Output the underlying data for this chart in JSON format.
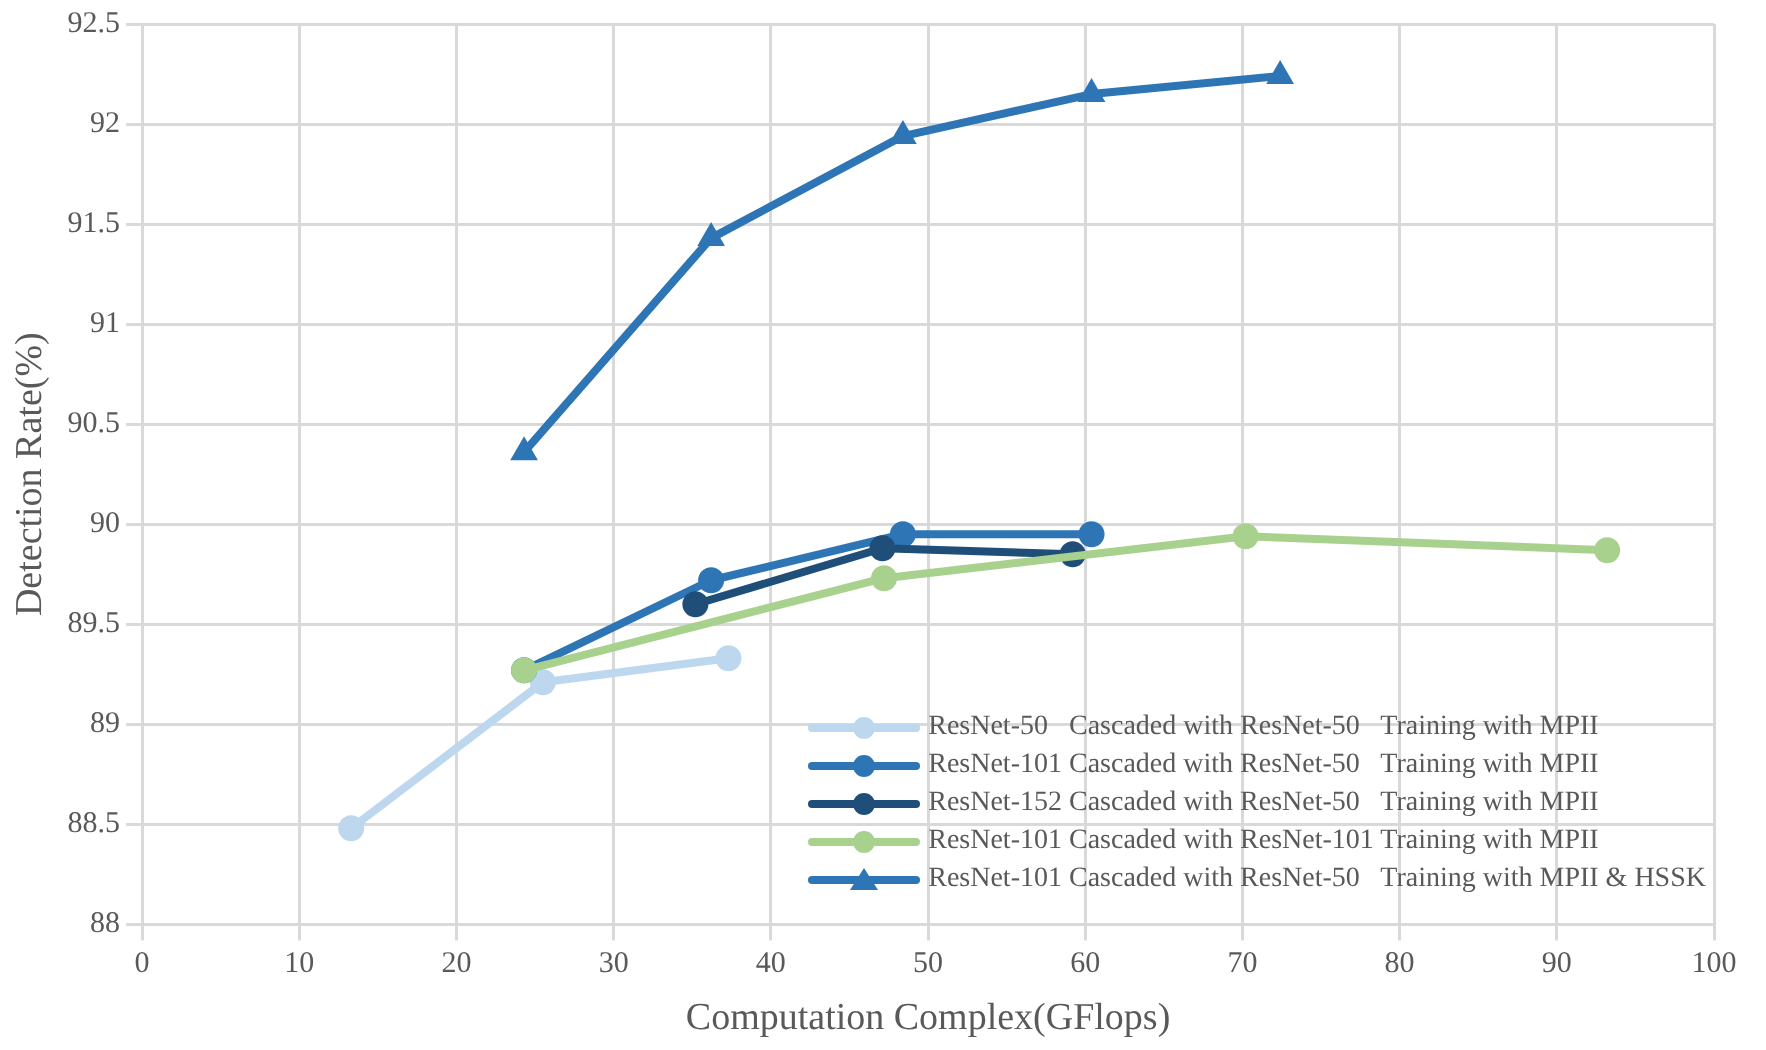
{
  "chart_data": {
    "type": "line",
    "xlabel": "Computation Complex(GFlops)",
    "ylabel": "Detection Rate(%)",
    "xlim": [
      0,
      100
    ],
    "xticks": [
      0,
      10,
      20,
      30,
      40,
      50,
      60,
      70,
      80,
      90,
      100
    ],
    "ylim": [
      88,
      92.5
    ],
    "yticks": [
      88,
      88.5,
      89,
      89.5,
      90,
      90.5,
      91,
      91.5,
      92,
      92.5
    ],
    "grid": true,
    "legend": "bottom right",
    "marker": "circle",
    "line_style": "solid",
    "series": [
      {
        "name": "ResNet-50   Cascaded with ResNet-50   Training with MPII",
        "color": "#bdd7ee",
        "x": [
          13.3,
          25.5,
          37.3
        ],
        "values": [
          88.48,
          89.21,
          89.33
        ]
      },
      {
        "name": "ResNet-101 Cascaded with ResNet-50   Training with MPII",
        "color": "#2e75b6",
        "x": [
          24.3,
          36.2,
          48.4,
          60.4
        ],
        "values": [
          89.27,
          89.72,
          89.95,
          89.95
        ]
      },
      {
        "name": "ResNet-152 Cascaded with ResNet-50   Training with MPII",
        "color": "#1f4e79",
        "x": [
          35.2,
          47.1,
          59.2
        ],
        "values": [
          89.6,
          89.88,
          89.85
        ]
      },
      {
        "name": "ResNet-101 Cascaded with ResNet-101 Training with MPII",
        "color": "#a9d18e",
        "x": [
          24.3,
          47.2,
          70.2,
          93.2
        ],
        "values": [
          89.27,
          89.73,
          89.94,
          89.87
        ]
      },
      {
        "name": "ResNet-101 Cascaded with ResNet-50   Training with MPII & HSSK",
        "color": "#2e75b6",
        "marker": "triangle",
        "x": [
          24.3,
          36.2,
          48.4,
          60.4,
          72.4
        ],
        "values": [
          90.36,
          91.43,
          91.94,
          92.15,
          92.24
        ]
      }
    ]
  }
}
